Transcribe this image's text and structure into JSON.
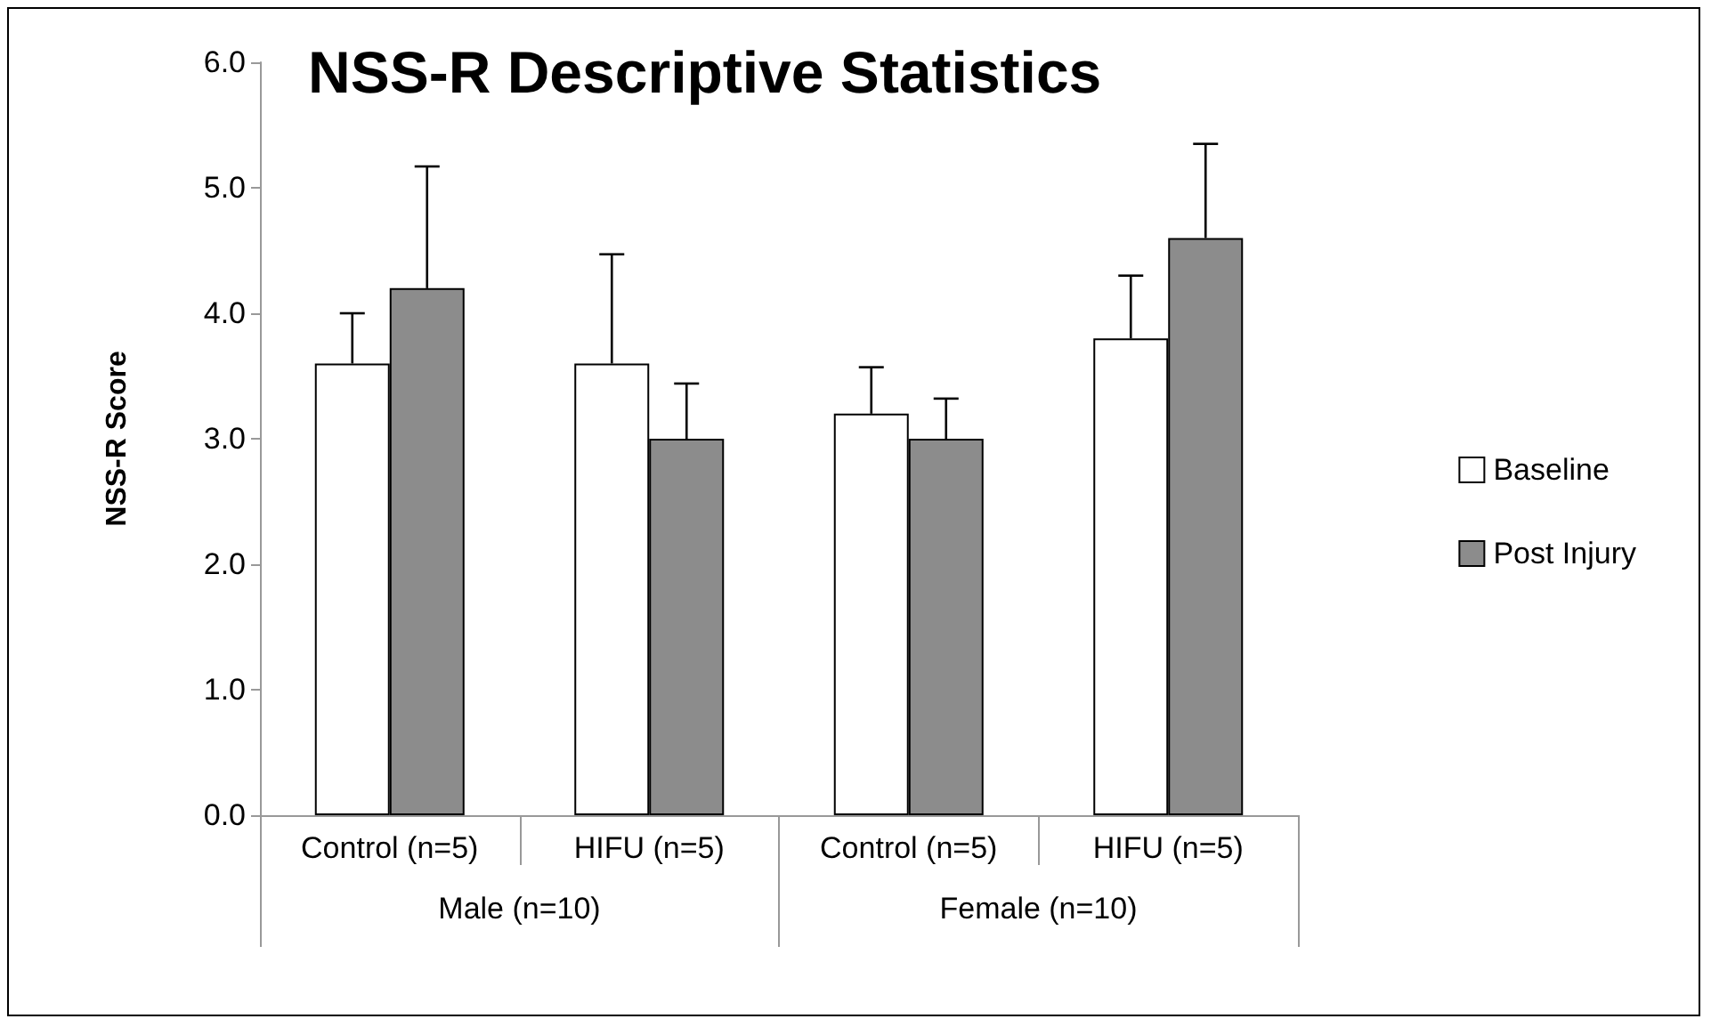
{
  "chart_data": {
    "type": "bar",
    "title": "NSS-R Descriptive Statistics",
    "ylabel": "NSS-R Score",
    "categories": [
      "Control (n=5)",
      "HIFU (n=5)",
      "Control (n=5)",
      "HIFU (n=5)"
    ],
    "annotations": [
      "Male (n=10)",
      "Female (n=10)"
    ],
    "series": [
      {
        "name": "Baseline",
        "color": "#ffffff",
        "values": [
          3.6,
          3.6,
          3.2,
          3.8
        ],
        "errors": [
          [
            3.6,
            4.0
          ],
          [
            3.6,
            4.47
          ],
          [
            3.2,
            3.57
          ],
          [
            3.8,
            4.3
          ]
        ]
      },
      {
        "name": "Post Injury",
        "color": "#8c8c8c",
        "values": [
          4.2,
          3.0,
          3.0,
          4.6
        ],
        "errors": [
          [
            4.2,
            5.17
          ],
          [
            3.0,
            3.44
          ],
          [
            3.0,
            3.32
          ],
          [
            4.6,
            5.35
          ]
        ]
      }
    ],
    "ylim": [
      0,
      6
    ],
    "yticks": [
      {
        "value": 0,
        "label": "0.0"
      },
      {
        "value": 1,
        "label": "1.0"
      },
      {
        "value": 2,
        "label": "2.0"
      },
      {
        "value": 3,
        "label": "3.0"
      },
      {
        "value": 4,
        "label": "4.0"
      },
      {
        "value": 5,
        "label": "5.0"
      },
      {
        "value": 6,
        "label": "6.0"
      }
    ],
    "grid": false,
    "legend": "right"
  }
}
